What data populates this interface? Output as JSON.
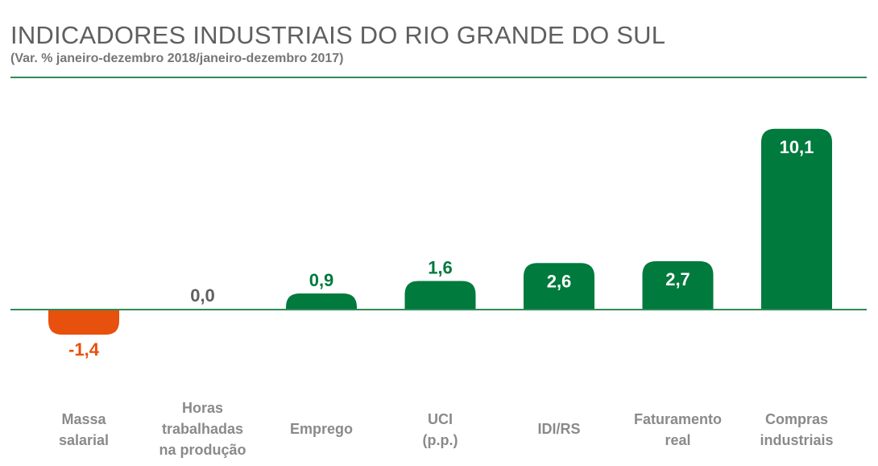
{
  "title": "INDICADORES INDUSTRIAIS DO RIO GRANDE DO SUL",
  "subtitle": "(Var. % janeiro-dezembro 2018/janeiro-dezembro 2017)",
  "colors": {
    "positive": "#007a3d",
    "negative": "#e8500e",
    "zero": "#5f5f5f",
    "rule": "#2e8b57",
    "category_text": "#8a8a8a"
  },
  "chart_data": {
    "type": "bar",
    "title": "INDICADORES INDUSTRIAIS DO RIO GRANDE DO SUL",
    "subtitle": "(Var. % janeiro-dezembro 2018/janeiro-dezembro 2017)",
    "xlabel": "",
    "ylabel": "",
    "categories": [
      [
        "Massa",
        "salarial"
      ],
      [
        "Horas",
        "trabalhadas",
        "na produção"
      ],
      [
        "Emprego"
      ],
      [
        "UCI",
        "(p.p.)"
      ],
      [
        "IDI/RS"
      ],
      [
        "Faturamento",
        "real"
      ],
      [
        "Compras",
        "industriais"
      ]
    ],
    "values": [
      -1.4,
      0.0,
      0.9,
      1.6,
      2.6,
      2.7,
      10.1
    ],
    "value_labels": [
      "-1,4",
      "0,0",
      "0,9",
      "1,6",
      "2,6",
      "2,7",
      "10,1"
    ],
    "ylim": [
      -1.4,
      10.1
    ],
    "grid": false,
    "legend": "none"
  }
}
